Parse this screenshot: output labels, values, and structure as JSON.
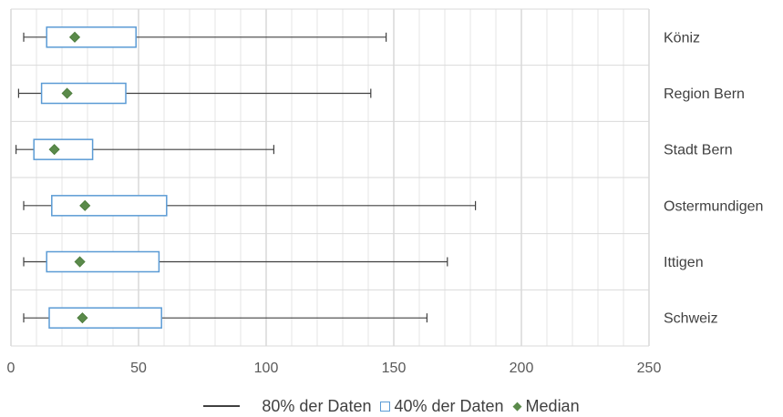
{
  "chart_data": {
    "type": "box",
    "orientation": "horizontal",
    "categories": [
      "Köniz",
      "Region Bern",
      "Stadt Bern",
      "Ostermundigen",
      "Ittigen",
      "Schweiz"
    ],
    "series": [
      {
        "name": "80% der Daten",
        "ranges": [
          [
            5,
            147
          ],
          [
            3,
            141
          ],
          [
            2,
            103
          ],
          [
            5,
            182
          ],
          [
            5,
            171
          ],
          [
            5,
            163
          ]
        ]
      },
      {
        "name": "40% der Daten",
        "ranges": [
          [
            14,
            49
          ],
          [
            12,
            45
          ],
          [
            9,
            32
          ],
          [
            16,
            61
          ],
          [
            14,
            58
          ],
          [
            15,
            59
          ]
        ]
      },
      {
        "name": "Median",
        "values": [
          25,
          22,
          17,
          29,
          27,
          28
        ]
      }
    ],
    "xlim": [
      0,
      250
    ],
    "x_ticks": [
      "0",
      "50",
      "100",
      "150",
      "200",
      "250"
    ],
    "grid": true,
    "legend_position": "bottom",
    "colors": {
      "whisker": "#404040",
      "box": "#5b9bd5",
      "median": "#5a8a4a",
      "grid": "#d9d9d9"
    }
  },
  "legend": {
    "items": [
      {
        "label": "80% der Daten",
        "symbol": "line"
      },
      {
        "label": "40% der Daten",
        "symbol": "box"
      },
      {
        "label": "Median",
        "symbol": "diamond"
      }
    ]
  }
}
